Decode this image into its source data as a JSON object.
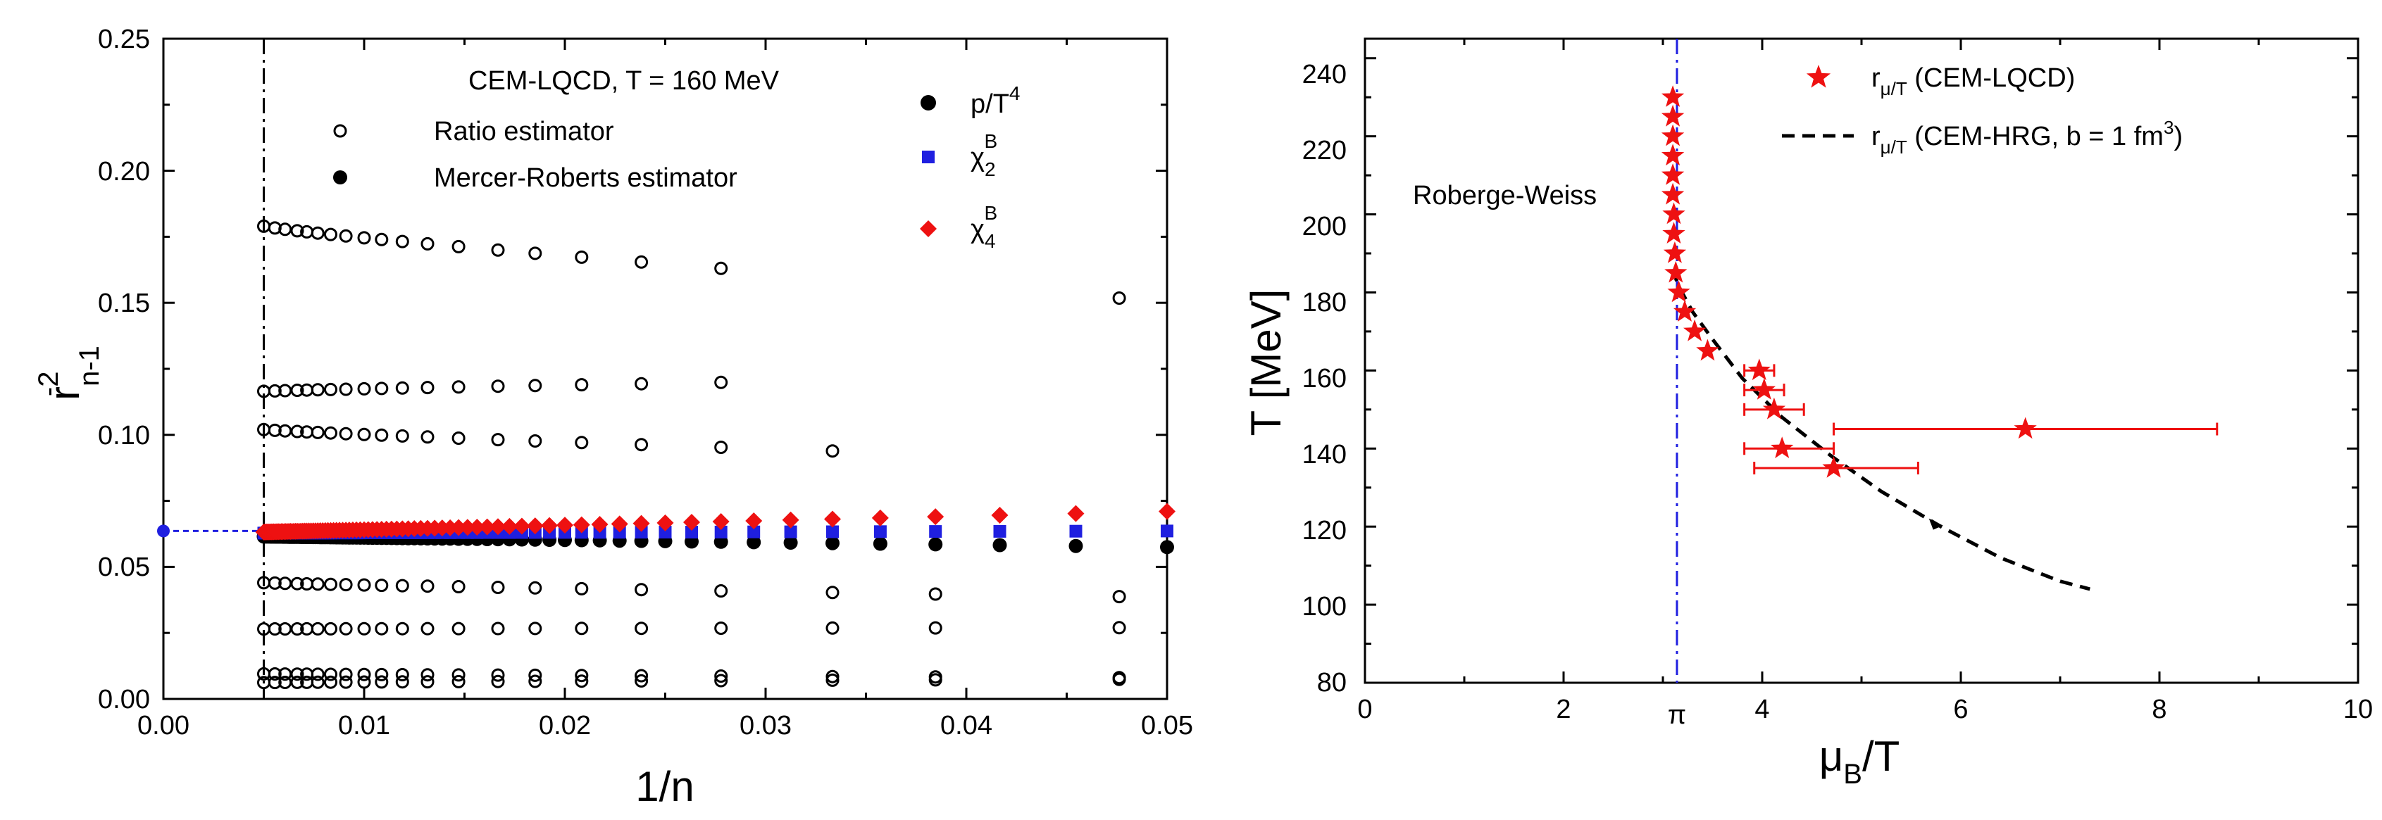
{
  "chart_data": [
    {
      "type": "scatter",
      "xlabel": "1/n",
      "ylabel_base": "r",
      "ylabel_sub": "n-1",
      "ylabel_sup": "-2",
      "xlim": [
        0,
        0.05
      ],
      "ylim": [
        0,
        0.25
      ],
      "x_ticks": [
        "0.00",
        "0.01",
        "0.02",
        "0.03",
        "0.04",
        "0.05"
      ],
      "y_ticks": [
        "0.00",
        "0.05",
        "0.10",
        "0.15",
        "0.20",
        "0.25"
      ],
      "annotation": "CEM-LQCD, T = 160 MeV",
      "reference_x": 0.005,
      "reference_y": 0.0636,
      "legend": {
        "ratio": "Ratio estimator",
        "mercer": "Mercer-Roberts estimator",
        "pressure_base": "p/T",
        "pressure_sup": "4",
        "chi2_base": "χ",
        "chi2_sub": "2",
        "chi2_sup": "B",
        "chi4_base": "χ",
        "chi4_sub": "4",
        "chi4_sup": "B"
      },
      "series": [
        {
          "name": "Ratio estimator",
          "color": "#000000",
          "marker": "open-circle",
          "bands": [
            {
              "start": 0.179,
              "end": 0.1505
            },
            {
              "start": 0.1165,
              "end": 0.1225
            },
            {
              "start": 0.102,
              "end": 0.09
            },
            {
              "start": 0.044,
              "end": 0.0385
            },
            {
              "start": 0.0265,
              "end": 0.027
            },
            {
              "start": 0.0095,
              "end": 0.008
            },
            {
              "start": 0.0062,
              "end": 0.0075
            }
          ]
        },
        {
          "name": "Mercer-Roberts p/T^4",
          "color": "#000000",
          "marker": "filled-circle",
          "y_start": 0.0615,
          "y_end": 0.0575
        },
        {
          "name": "Mercer-Roberts chi2^B",
          "color": "#1f1fe0",
          "marker": "square",
          "y_start": 0.0628,
          "y_end": 0.0636
        },
        {
          "name": "Mercer-Roberts chi4^B",
          "color": "#ee1111",
          "marker": "diamond",
          "y_start": 0.0632,
          "y_end": 0.071
        }
      ]
    },
    {
      "type": "scatter",
      "xlabel_base": "μ",
      "xlabel_sub": "B",
      "xlabel_tail": "/T",
      "ylabel": "T [MeV]",
      "xlim": [
        0,
        10
      ],
      "ylim": [
        80,
        245
      ],
      "x_ticks": [
        "0",
        "2",
        "4",
        "6",
        "8",
        "10"
      ],
      "pi_label": "π",
      "y_ticks": [
        "80",
        "100",
        "120",
        "140",
        "160",
        "180",
        "200",
        "220",
        "240"
      ],
      "rw_label": "Roberge-Weiss",
      "rw_x": 3.1416,
      "legend": {
        "lqcd_base": "r",
        "lqcd_sub": "μ/T",
        "lqcd_tail": " (CEM-LQCD)",
        "hrg_base": "r",
        "hrg_sub": "μ/T",
        "hrg_tail": " (CEM-HRG, b = 1 fm",
        "hrg_sup": "3",
        "hrg_close": ")"
      },
      "lqcd_points": [
        {
          "T": 230,
          "x": 3.1
        },
        {
          "T": 225,
          "x": 3.1
        },
        {
          "T": 220,
          "x": 3.1
        },
        {
          "T": 215,
          "x": 3.1
        },
        {
          "T": 210,
          "x": 3.1
        },
        {
          "T": 205,
          "x": 3.1
        },
        {
          "T": 200,
          "x": 3.11
        },
        {
          "T": 195,
          "x": 3.11
        },
        {
          "T": 190,
          "x": 3.12
        },
        {
          "T": 185,
          "x": 3.13
        },
        {
          "T": 180,
          "x": 3.16
        },
        {
          "T": 175,
          "x": 3.22
        },
        {
          "T": 170,
          "x": 3.32
        },
        {
          "T": 165,
          "x": 3.45
        },
        {
          "T": 160,
          "x": 3.97,
          "xerr_lo": 3.82,
          "xerr_hi": 4.12
        },
        {
          "T": 155,
          "x": 4.02,
          "xerr_lo": 3.82,
          "xerr_hi": 4.22
        },
        {
          "T": 150,
          "x": 4.12,
          "xerr_lo": 3.82,
          "xerr_hi": 4.42
        },
        {
          "T": 145,
          "x": 6.65,
          "xerr_lo": 4.72,
          "xerr_hi": 8.58
        },
        {
          "T": 140,
          "x": 4.2,
          "xerr_lo": 3.82,
          "xerr_hi": 4.72
        },
        {
          "T": 135,
          "x": 4.72,
          "xerr_lo": 3.92,
          "xerr_hi": 5.57
        }
      ],
      "hrg_curve": [
        {
          "x": 3.1,
          "T": 186
        },
        {
          "x": 3.15,
          "T": 182
        },
        {
          "x": 3.3,
          "T": 175
        },
        {
          "x": 3.5,
          "T": 168
        },
        {
          "x": 3.8,
          "T": 158
        },
        {
          "x": 4.2,
          "T": 148
        },
        {
          "x": 4.7,
          "T": 138
        },
        {
          "x": 5.2,
          "T": 129
        },
        {
          "x": 5.8,
          "T": 120
        },
        {
          "x": 6.4,
          "T": 112
        },
        {
          "x": 7.0,
          "T": 106
        },
        {
          "x": 7.3,
          "T": 104
        }
      ],
      "hrg_arrow": {
        "x": 5.75,
        "T": 121
      }
    }
  ]
}
